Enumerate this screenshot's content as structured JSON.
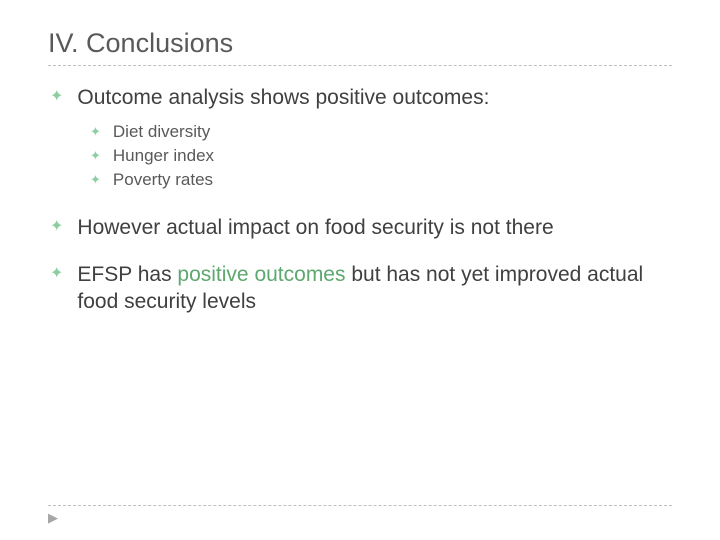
{
  "title": "IV. Conclusions",
  "colors": {
    "title_color": "#595959",
    "body_color": "#404040",
    "sub_color": "#595959",
    "accent": "#5da86f",
    "bullet": "#8ccea0",
    "divider": "#bfbfbf",
    "background": "#ffffff"
  },
  "typography": {
    "title_fontsize": 27,
    "body_fontsize": 21,
    "sub_fontsize": 17,
    "font_family": "Arial"
  },
  "bullets": [
    {
      "text": "Outcome analysis shows positive outcomes:",
      "sub": [
        "Diet diversity",
        "Hunger index",
        "Poverty rates"
      ]
    },
    {
      "text": "However actual impact on food security is not there"
    },
    {
      "text_pre": "EFSP has ",
      "text_accent": "positive outcomes",
      "text_post": " but has not yet improved actual food security levels"
    }
  ]
}
